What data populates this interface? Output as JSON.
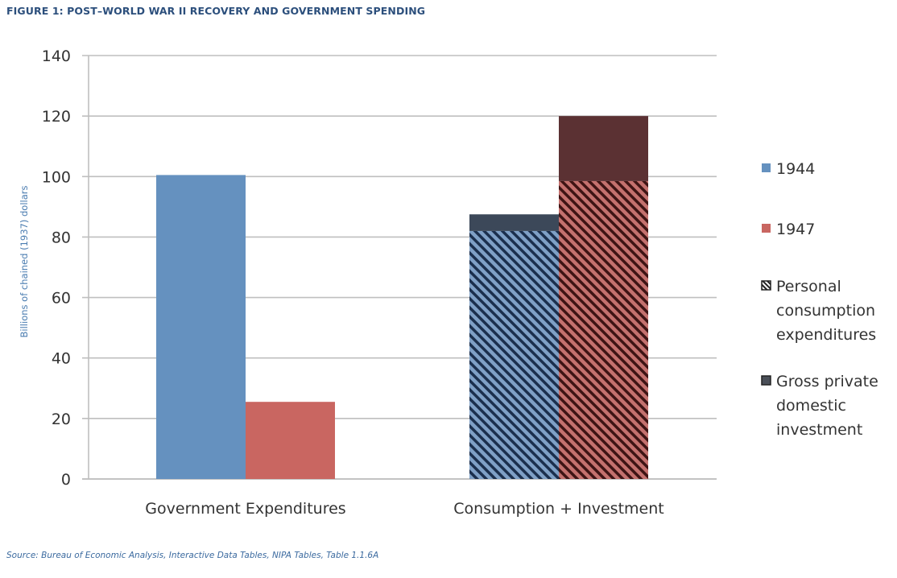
{
  "figure": {
    "title": "FIGURE 1: POST–WORLD WAR II RECOVERY AND GOVERNMENT SPENDING",
    "source": "Source: Bureau of Economic Analysis, Interactive Data Tables, NIPA Tables, Table 1.1.6A"
  },
  "colors": {
    "y1944": "#6591bf",
    "y1947": "#c96661",
    "y1944_hatch_bg": "#7fa0c6",
    "y1944_hatch_line": "#1b2f4d",
    "y1947_hatch_bg": "#c4716e",
    "y1947_hatch_line": "#3e1414",
    "investment_1944": "#3c4859",
    "investment_1947": "#5b3133",
    "grid": "#bfbfbf",
    "ylabel": "#4a7cb0"
  },
  "chart_data": {
    "type": "bar",
    "title": "FIGURE 1: POST–WORLD WAR II RECOVERY AND GOVERNMENT SPENDING",
    "xlabel": "",
    "ylabel": "Billions of chained (1937) dollars",
    "ylim": [
      0,
      140
    ],
    "yticks": [
      0,
      20,
      40,
      60,
      80,
      100,
      120,
      140
    ],
    "grid": true,
    "categories": [
      "Government Expenditures",
      "Consumption + Investment"
    ],
    "groups": [
      {
        "category": "Government Expenditures",
        "bars": [
          {
            "year": "1944",
            "segments": [
              {
                "component": "Government expenditures",
                "value": 100.5
              }
            ]
          },
          {
            "year": "1947",
            "segments": [
              {
                "component": "Government expenditures",
                "value": 25.5
              }
            ]
          }
        ]
      },
      {
        "category": "Consumption + Investment",
        "bars": [
          {
            "year": "1944",
            "segments": [
              {
                "component": "Personal consumption expenditures",
                "value": 82
              },
              {
                "component": "Gross private domestic investment",
                "value": 5.5
              }
            ]
          },
          {
            "year": "1947",
            "segments": [
              {
                "component": "Personal consumption expenditures",
                "value": 98.5
              },
              {
                "component": "Gross private domestic investment",
                "value": 21.5
              }
            ]
          }
        ]
      }
    ],
    "legend": {
      "placement": "right",
      "entries": [
        {
          "label": "1944",
          "swatch": "solid-1944"
        },
        {
          "label": "1947",
          "swatch": "solid-1947"
        },
        {
          "label": "Personal consumption expenditures",
          "lines": [
            "Personal",
            "consumption",
            "expenditures"
          ],
          "swatch": "hatched"
        },
        {
          "label": "Gross private domestic investment",
          "lines": [
            "Gross private",
            "domestic",
            "investment"
          ],
          "swatch": "dark"
        }
      ]
    }
  }
}
